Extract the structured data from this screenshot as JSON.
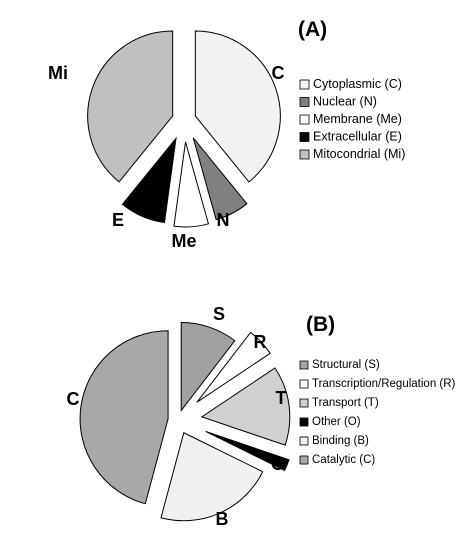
{
  "chart_data": [
    {
      "type": "pie",
      "title": "(A)",
      "categories": [
        "Cytoplasmic (C)",
        "Nuclear (N)",
        "Membrane (Me)",
        "Extracellular (E)",
        "Mitocondrial (Mi)"
      ],
      "slice_labels": [
        "C",
        "N",
        "Me",
        "E",
        "Mi"
      ],
      "values": [
        36,
        6,
        6,
        8,
        36
      ],
      "colors": [
        "#f2f2f2",
        "#808080",
        "#ffffff",
        "#000000",
        "#c0c0c0"
      ],
      "legend": "right"
    },
    {
      "type": "pie",
      "title": "(B)",
      "categories": [
        "Structural (S)",
        "Transcription/Regulation (R)",
        "Transport (T)",
        "Other (O)",
        "Binding (B)",
        "Catalytic (C)"
      ],
      "slice_labels": [
        "S",
        "R",
        "T",
        "O",
        "B",
        "C"
      ],
      "values": [
        10,
        5,
        14,
        2,
        21,
        44
      ],
      "colors": [
        "#a0a0a0",
        "#ffffff",
        "#d0d0d0",
        "#000000",
        "#f0f0f0",
        "#a8a8a8"
      ],
      "legend": "right"
    }
  ]
}
